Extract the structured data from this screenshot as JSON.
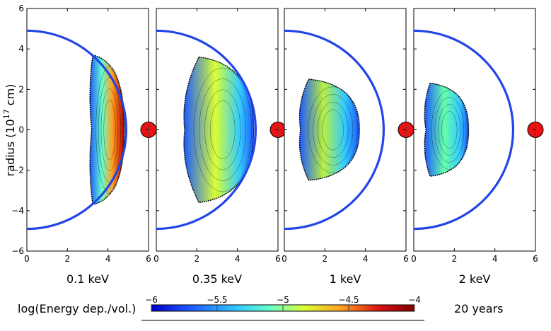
{
  "chart_data": {
    "type": "heatmap",
    "ylabel": "radius (10¹⁷ cm)",
    "ylabel_base": "radius (10",
    "ylabel_exp": "17",
    "ylabel_unit": " cm)",
    "xlim": [
      0,
      6
    ],
    "ylim": [
      -6,
      6
    ],
    "x_ticks": [
      "0",
      "2",
      "4",
      "6"
    ],
    "y_ticks": [
      "6",
      "4",
      "2",
      "0",
      "−2",
      "−4",
      "−6"
    ],
    "panels": [
      {
        "label": "0.1 keV",
        "shape": {
          "x0": 3.2,
          "x1": 4.8,
          "inner_x": 3.25,
          "h": 3.7
        },
        "peak": "-4.0"
      },
      {
        "label": "0.35 keV",
        "shape": {
          "x0": 1.4,
          "x1": 4.8,
          "inner_x": 2.1,
          "h": 3.6
        },
        "peak": "-4.9"
      },
      {
        "label": "1 keV",
        "shape": {
          "x0": 0.8,
          "x1": 3.7,
          "inner_x": 1.2,
          "h": 2.5
        },
        "peak": "-4.9"
      },
      {
        "label": "2 keV",
        "shape": {
          "x0": 0.6,
          "x1": 2.7,
          "inner_x": 0.8,
          "h": 2.3
        },
        "peak": "-5.1"
      }
    ],
    "shell_radius": 4.9,
    "star_position": [
      6,
      0
    ],
    "colorbar": {
      "title": "log(Energy dep./vol.)",
      "min": -6,
      "max": -4,
      "ticks": [
        "−6",
        "−5.5",
        "−5",
        "−4.5",
        "−4"
      ],
      "colors": [
        "#0000c8",
        "#1e5aff",
        "#33ccff",
        "#66ffcc",
        "#d8ff33",
        "#ffa020",
        "#d81010",
        "#800000"
      ]
    },
    "time_label": "20 years",
    "colors": {
      "shell": "#2244e8",
      "star": "#ee1111",
      "frame": "#000000"
    }
  }
}
